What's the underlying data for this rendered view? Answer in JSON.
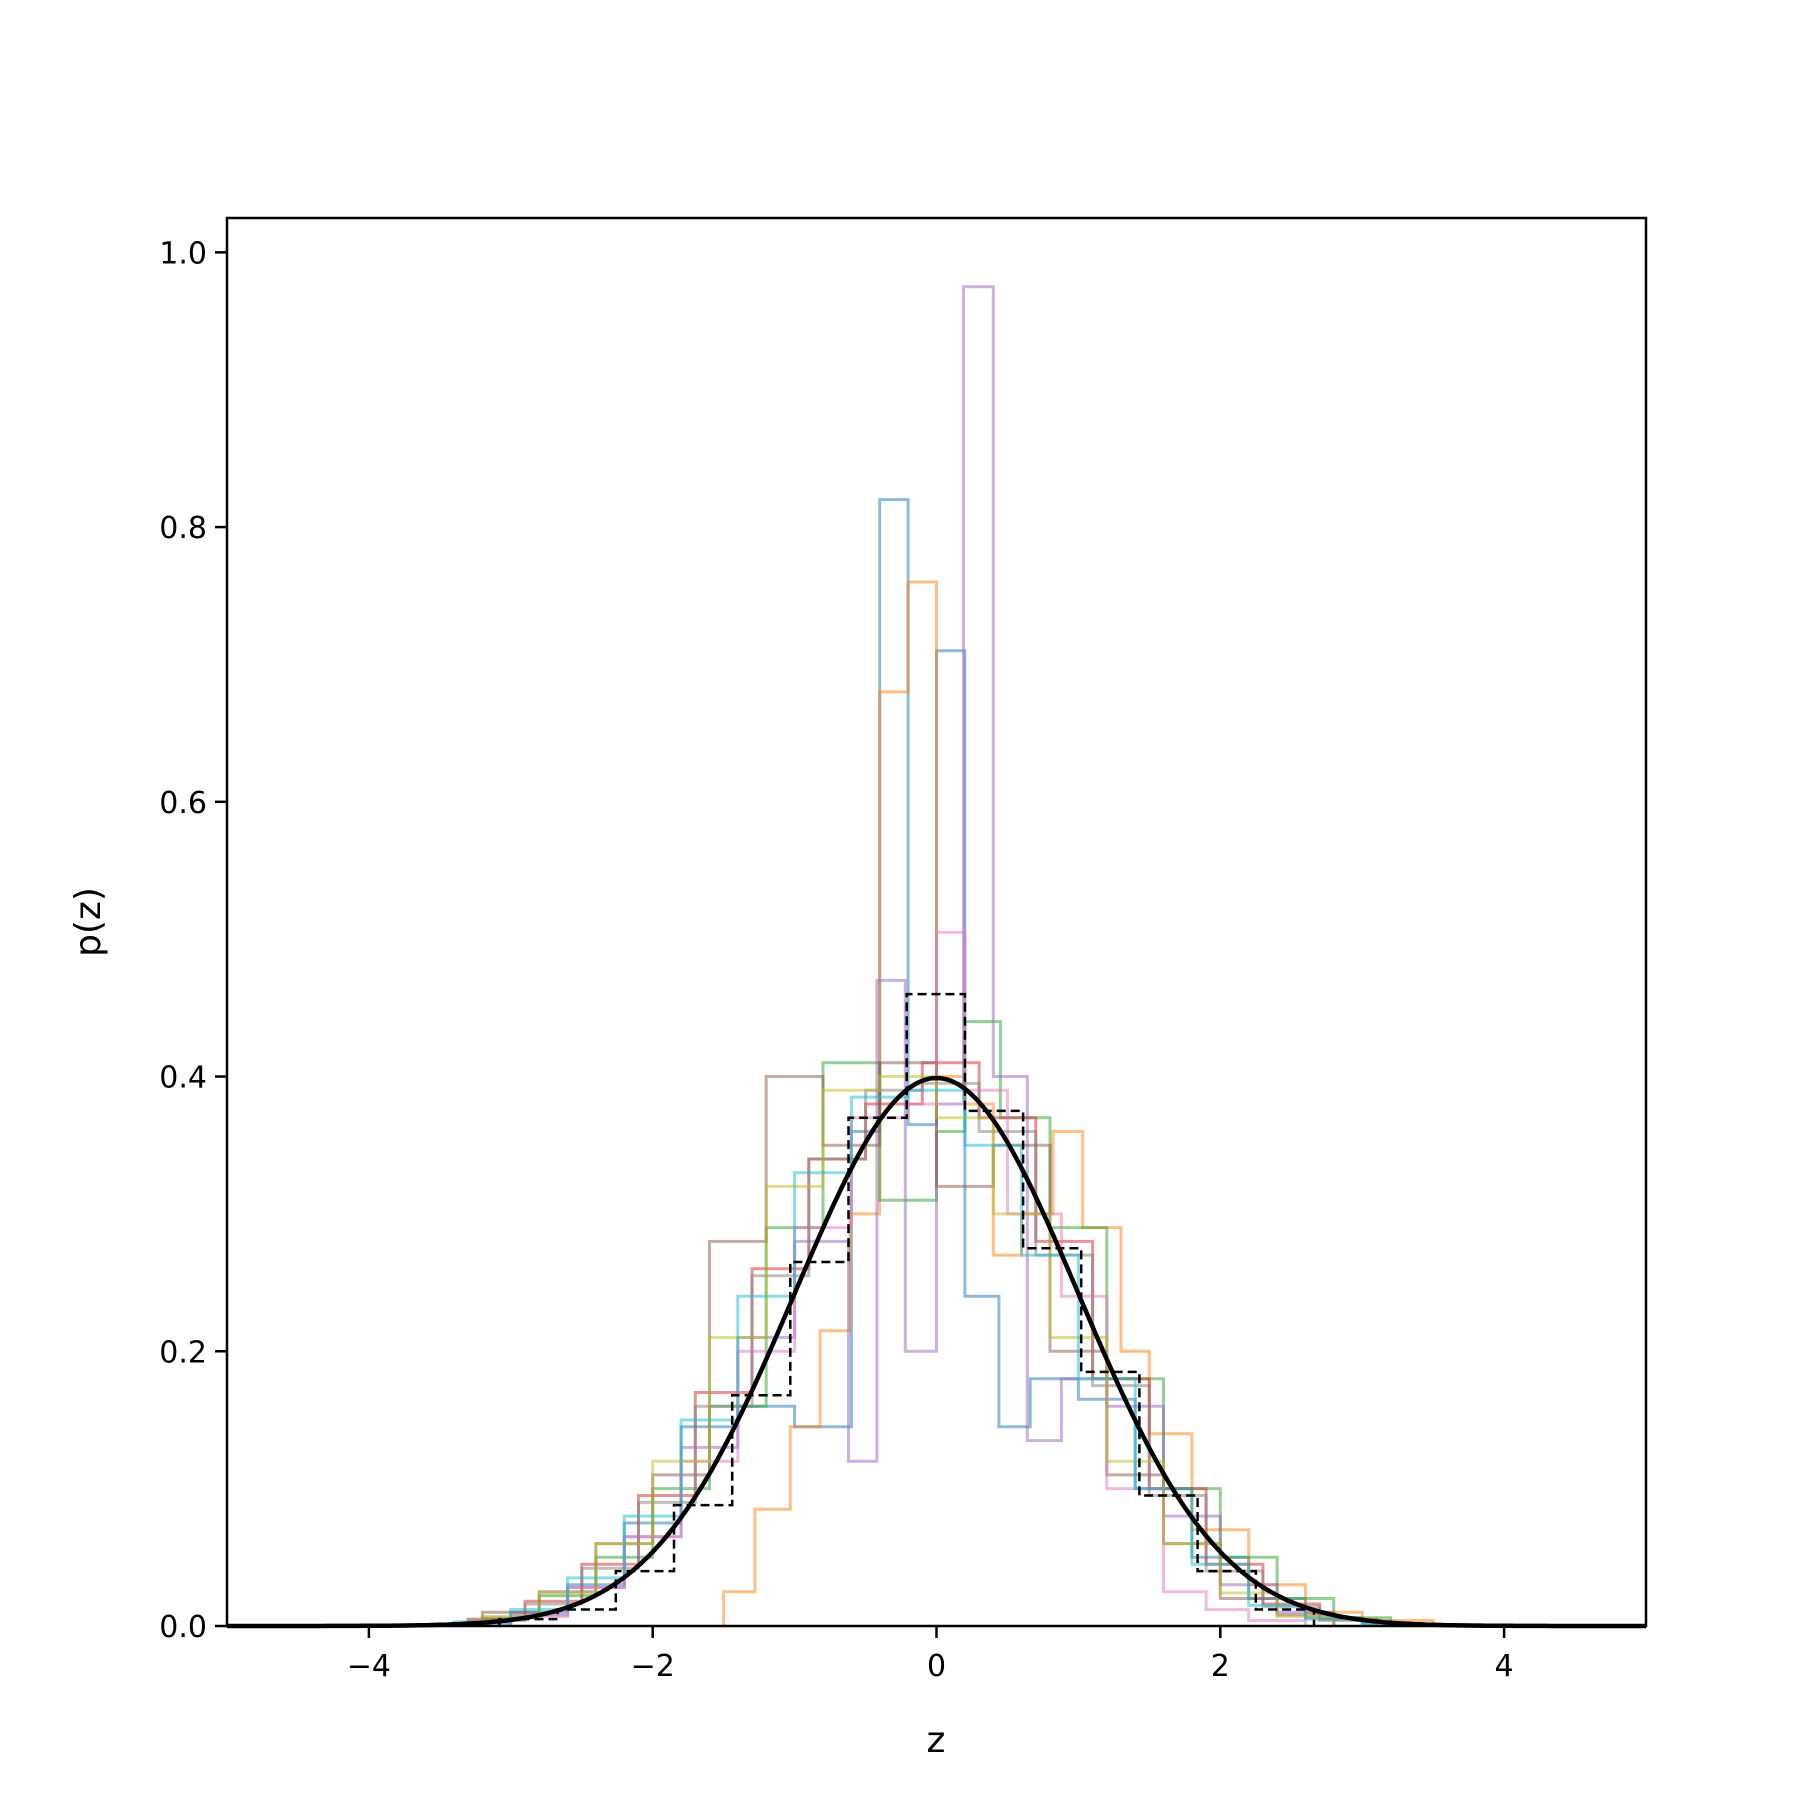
{
  "chart_data": {
    "type": "line",
    "title": "",
    "xlabel": "z",
    "ylabel": "p(z)",
    "xlim": [
      -5,
      5
    ],
    "ylim": [
      0,
      1.025
    ],
    "grid": false,
    "legend": "none",
    "xticks": [
      -4,
      -2,
      0,
      2,
      4
    ],
    "xtick_labels": [
      "−4",
      "−2",
      "0",
      "2",
      "4"
    ],
    "yticks": [
      0.0,
      0.2,
      0.4,
      0.6,
      0.8,
      1.0
    ],
    "ytick_labels": [
      "0.0",
      "0.2",
      "0.4",
      "0.6",
      "0.8",
      "1.0"
    ],
    "reference_curve": {
      "style": "solid",
      "color": "#000000",
      "mean": 0,
      "sigma": 1
    },
    "dashed_histogram": {
      "style": "dashed",
      "color": "#000000",
      "edges": [
        -3.08,
        -2.67,
        -2.26,
        -1.85,
        -1.44,
        -1.03,
        -0.62,
        -0.21,
        0.2,
        0.61,
        1.02,
        1.43,
        1.84,
        2.25,
        2.66
      ],
      "values": [
        0.005,
        0.012,
        0.04,
        0.088,
        0.168,
        0.265,
        0.37,
        0.46,
        0.375,
        0.275,
        0.185,
        0.095,
        0.04,
        0.012
      ]
    },
    "series": [
      {
        "color": "#1f77b4",
        "edges": [
          -3.4,
          -3.0,
          -2.6,
          -2.2,
          -1.8,
          -1.4,
          -1.0,
          -0.6,
          -0.4,
          -0.2,
          0.0,
          0.2,
          0.44,
          0.66,
          1.0,
          1.4,
          1.8,
          2.2,
          2.6,
          3.0,
          3.3
        ],
        "values": [
          0.002,
          0.01,
          0.03,
          0.075,
          0.145,
          0.16,
          0.145,
          0.36,
          0.82,
          0.365,
          0.71,
          0.24,
          0.145,
          0.18,
          0.165,
          0.1,
          0.05,
          0.02,
          0.006,
          0.002
        ]
      },
      {
        "color": "#ff7f0e",
        "edges": [
          -1.5,
          -1.28,
          -1.03,
          -0.82,
          -0.61,
          -0.4,
          -0.2,
          0.0,
          0.2,
          0.4,
          0.6,
          0.82,
          1.03,
          1.3,
          1.5,
          1.8,
          2.2,
          2.6,
          3.0,
          3.5,
          3.85
        ],
        "values": [
          0.025,
          0.085,
          0.145,
          0.215,
          0.3,
          0.68,
          0.76,
          0.4,
          0.38,
          0.27,
          0.3,
          0.36,
          0.29,
          0.2,
          0.14,
          0.07,
          0.03,
          0.01,
          0.004,
          0.001
        ]
      },
      {
        "color": "#2ca02c",
        "edges": [
          -3.2,
          -2.8,
          -2.4,
          -2.0,
          -1.6,
          -1.2,
          -0.8,
          -0.4,
          0.0,
          0.2,
          0.45,
          0.8,
          1.2,
          1.6,
          2.0,
          2.4,
          2.8,
          3.2
        ],
        "values": [
          0.006,
          0.022,
          0.05,
          0.1,
          0.16,
          0.29,
          0.41,
          0.31,
          0.36,
          0.44,
          0.37,
          0.29,
          0.18,
          0.1,
          0.05,
          0.02,
          0.006
        ]
      },
      {
        "color": "#d62728",
        "edges": [
          -3.3,
          -2.9,
          -2.5,
          -2.1,
          -1.7,
          -1.3,
          -0.9,
          -0.5,
          -0.1,
          0.3,
          0.7,
          1.1,
          1.5,
          1.9,
          2.3,
          2.7,
          3.1
        ],
        "values": [
          0.005,
          0.018,
          0.045,
          0.095,
          0.17,
          0.26,
          0.34,
          0.38,
          0.41,
          0.37,
          0.28,
          0.18,
          0.1,
          0.045,
          0.016,
          0.005
        ]
      },
      {
        "color": "#9467bd",
        "edges": [
          -3.0,
          -2.6,
          -2.2,
          -1.8,
          -1.4,
          -1.0,
          -0.62,
          -0.42,
          -0.22,
          0.0,
          0.19,
          0.4,
          0.64,
          0.88,
          1.2,
          1.6,
          2.0,
          2.4,
          2.8
        ],
        "values": [
          0.008,
          0.028,
          0.065,
          0.13,
          0.21,
          0.28,
          0.12,
          0.47,
          0.2,
          0.38,
          0.975,
          0.4,
          0.135,
          0.18,
          0.16,
          0.08,
          0.03,
          0.01
        ]
      },
      {
        "color": "#8c564b",
        "edges": [
          -3.2,
          -2.8,
          -2.4,
          -2.0,
          -1.6,
          -1.2,
          -0.8,
          -0.4,
          0.0,
          0.4,
          0.8,
          1.2,
          1.6,
          2.0,
          2.4,
          2.8
        ],
        "values": [
          0.01,
          0.025,
          0.06,
          0.11,
          0.28,
          0.4,
          0.35,
          0.41,
          0.32,
          0.35,
          0.2,
          0.11,
          0.06,
          0.02,
          0.008
        ]
      },
      {
        "color": "#e377c2",
        "edges": [
          -3.0,
          -2.6,
          -2.2,
          -1.8,
          -1.4,
          -1.0,
          -0.6,
          -0.2,
          0.0,
          0.2,
          0.5,
          0.88,
          1.2,
          1.6,
          1.9,
          2.2,
          2.6
        ],
        "values": [
          0.007,
          0.028,
          0.065,
          0.12,
          0.2,
          0.29,
          0.37,
          0.38,
          0.505,
          0.39,
          0.3,
          0.24,
          0.1,
          0.025,
          0.012,
          0.004
        ]
      },
      {
        "color": "#7f7f7f",
        "edges": [
          -3.3,
          -2.9,
          -2.5,
          -2.1,
          -1.7,
          -1.3,
          -0.9,
          -0.5,
          -0.1,
          0.3,
          0.7,
          1.1,
          1.5,
          1.9,
          2.3,
          2.7,
          3.1
        ],
        "values": [
          0.004,
          0.016,
          0.042,
          0.09,
          0.16,
          0.255,
          0.34,
          0.39,
          0.395,
          0.36,
          0.27,
          0.175,
          0.095,
          0.04,
          0.014,
          0.004
        ]
      },
      {
        "color": "#bcbd22",
        "edges": [
          -3.2,
          -2.8,
          -2.4,
          -2.0,
          -1.6,
          -1.2,
          -0.8,
          -0.4,
          0.0,
          0.4,
          0.8,
          1.2,
          1.6,
          2.0,
          2.4,
          2.8
        ],
        "values": [
          0.007,
          0.024,
          0.06,
          0.12,
          0.21,
          0.32,
          0.39,
          0.4,
          0.37,
          0.3,
          0.21,
          0.12,
          0.06,
          0.024,
          0.007
        ]
      },
      {
        "color": "#17becf",
        "edges": [
          -3.4,
          -3.0,
          -2.6,
          -2.2,
          -1.8,
          -1.4,
          -1.0,
          -0.6,
          -0.2,
          0.2,
          0.6,
          1.0,
          1.4,
          1.8,
          2.2,
          2.6,
          3.0,
          3.3
        ],
        "values": [
          0.003,
          0.012,
          0.035,
          0.08,
          0.15,
          0.24,
          0.33,
          0.385,
          0.39,
          0.35,
          0.27,
          0.18,
          0.1,
          0.045,
          0.015,
          0.005,
          0.002
        ]
      }
    ]
  }
}
